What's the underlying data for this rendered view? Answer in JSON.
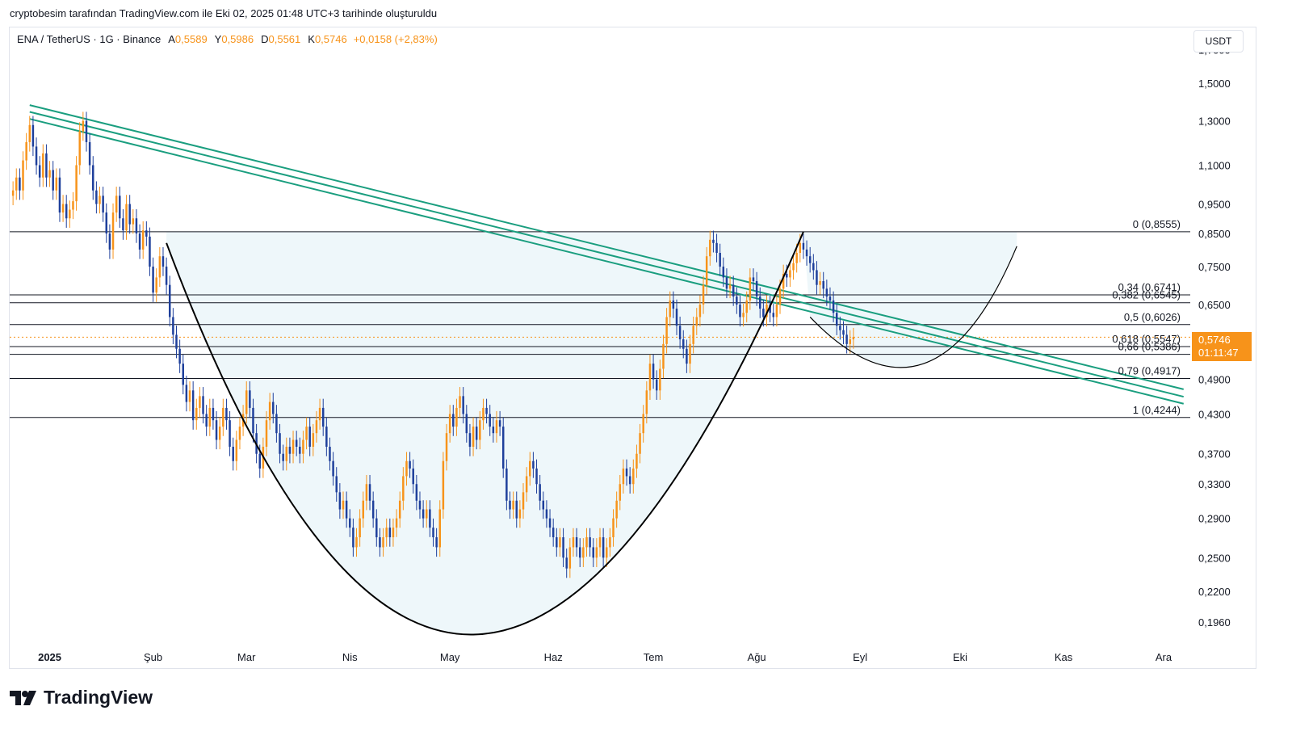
{
  "caption": "cryptobesim tarafından TradingView.com ile Eki 02, 2025 01:48 UTC+3 tarihinde oluşturuldu",
  "legend": {
    "symbol": "ENA / TetherUS · 1G · Binance",
    "open_label": "A",
    "open": "0,5589",
    "high_label": "Y",
    "high": "0,5986",
    "low_label": "D",
    "low": "0,5561",
    "close_label": "K",
    "close": "0,5746",
    "change": "+0,0158 (+2,83%)"
  },
  "currency": "USDT",
  "price_tag": {
    "price": "0,5746",
    "timer": "01:11:47"
  },
  "brand": "TradingView",
  "colors": {
    "up": "#f7931a",
    "down": "#1e3f9b",
    "channel": "#1a9e7f",
    "cup_fill": "#eef7fa",
    "level": "#131722"
  },
  "chart_data": {
    "type": "candlestick",
    "y_scale": "log",
    "ylim": [
      0.18,
      1.85
    ],
    "y_ticks": [
      "1,7000",
      "1,5000",
      "1,3000",
      "1,1000",
      "0,9500",
      "0,8500",
      "0,7500",
      "0,6500",
      "0,4900",
      "0,4300",
      "0,3700",
      "0,3300",
      "0,2900",
      "0,2500",
      "0,2200",
      "0,1960"
    ],
    "y_tick_values": [
      1.7,
      1.5,
      1.3,
      1.1,
      0.95,
      0.85,
      0.75,
      0.65,
      0.49,
      0.43,
      0.37,
      0.33,
      0.29,
      0.25,
      0.22,
      0.196
    ],
    "x_labels": [
      "2025",
      "Şub",
      "Mar",
      "Nis",
      "May",
      "Haz",
      "Tem",
      "Ağu",
      "Eyl",
      "Eki",
      "Kas",
      "Ara"
    ],
    "x_label_days": [
      0,
      31,
      59,
      90,
      120,
      151,
      181,
      212,
      243,
      273,
      304,
      334
    ],
    "x_range_days": [
      -12,
      342
    ],
    "fib_levels": [
      {
        "label": "0 (0,8555)",
        "value": 0.8555
      },
      {
        "label": "0,34 (0,6741)",
        "value": 0.6741
      },
      {
        "label": "0,382 (0,6545)",
        "value": 0.6545
      },
      {
        "label": "0,5 (0,6026)",
        "value": 0.6026
      },
      {
        "label": "0,618 (0,5547)",
        "value": 0.5547
      },
      {
        "label": "0,66 (0,5386)",
        "value": 0.5386
      },
      {
        "label": "0,79 (0,4917)",
        "value": 0.4917
      },
      {
        "label": "1 (0,4244)",
        "value": 0.4244
      }
    ],
    "channel": {
      "start": {
        "day": -6,
        "values": [
          1.38,
          1.345,
          1.31
        ]
      },
      "end": {
        "day": 340,
        "values": [
          0.472,
          0.459,
          0.447
        ]
      }
    },
    "cup": {
      "start": {
        "day": 35,
        "value": 0.82
      },
      "bottom": {
        "day": 127,
        "value": 0.187
      },
      "end": {
        "day": 226,
        "value": 0.8555
      }
    },
    "handle": {
      "start": {
        "day": 228,
        "value": 0.62
      },
      "bottom": {
        "day": 262,
        "value": 0.52
      },
      "end": {
        "day": 290,
        "value": 0.81
      }
    },
    "last_price": 0.5746,
    "closes": [
      [
        -11,
        1.0
      ],
      [
        -10,
        1.05
      ],
      [
        -9,
        1.0
      ],
      [
        -8,
        1.12
      ],
      [
        -7,
        1.2
      ],
      [
        -6,
        1.28
      ],
      [
        -5,
        1.18
      ],
      [
        -4,
        1.1
      ],
      [
        -3,
        1.05
      ],
      [
        -2,
        1.15
      ],
      [
        -1,
        1.05
      ],
      [
        0,
        1.08
      ],
      [
        1,
        1.0
      ],
      [
        2,
        1.05
      ],
      [
        3,
        0.92
      ],
      [
        4,
        0.95
      ],
      [
        5,
        0.9
      ],
      [
        6,
        0.93
      ],
      [
        7,
        0.96
      ],
      [
        8,
        1.1
      ],
      [
        9,
        1.25
      ],
      [
        10,
        1.3
      ],
      [
        11,
        1.2
      ],
      [
        12,
        1.1
      ],
      [
        13,
        1.0
      ],
      [
        14,
        0.95
      ],
      [
        15,
        0.98
      ],
      [
        16,
        0.92
      ],
      [
        17,
        0.85
      ],
      [
        18,
        0.8
      ],
      [
        19,
        0.92
      ],
      [
        20,
        0.98
      ],
      [
        21,
        0.9
      ],
      [
        22,
        0.86
      ],
      [
        23,
        0.95
      ],
      [
        24,
        0.88
      ],
      [
        25,
        0.9
      ],
      [
        26,
        0.85
      ],
      [
        27,
        0.8
      ],
      [
        28,
        0.86
      ],
      [
        29,
        0.84
      ],
      [
        30,
        0.75
      ],
      [
        31,
        0.68
      ],
      [
        32,
        0.72
      ],
      [
        33,
        0.78
      ],
      [
        34,
        0.75
      ],
      [
        35,
        0.7
      ],
      [
        36,
        0.62
      ],
      [
        37,
        0.58
      ],
      [
        38,
        0.55
      ],
      [
        39,
        0.52
      ],
      [
        40,
        0.48
      ],
      [
        41,
        0.45
      ],
      [
        42,
        0.47
      ],
      [
        43,
        0.42
      ],
      [
        44,
        0.44
      ],
      [
        45,
        0.46
      ],
      [
        46,
        0.43
      ],
      [
        47,
        0.41
      ],
      [
        48,
        0.44
      ],
      [
        49,
        0.42
      ],
      [
        50,
        0.39
      ],
      [
        51,
        0.41
      ],
      [
        52,
        0.44
      ],
      [
        53,
        0.42
      ],
      [
        54,
        0.38
      ],
      [
        55,
        0.36
      ],
      [
        56,
        0.39
      ],
      [
        57,
        0.41
      ],
      [
        58,
        0.43
      ],
      [
        59,
        0.47
      ],
      [
        60,
        0.44
      ],
      [
        61,
        0.4
      ],
      [
        62,
        0.37
      ],
      [
        63,
        0.35
      ],
      [
        64,
        0.38
      ],
      [
        65,
        0.42
      ],
      [
        66,
        0.45
      ],
      [
        67,
        0.43
      ],
      [
        68,
        0.4
      ],
      [
        69,
        0.37
      ],
      [
        70,
        0.36
      ],
      [
        71,
        0.38
      ],
      [
        72,
        0.37
      ],
      [
        73,
        0.39
      ],
      [
        74,
        0.38
      ],
      [
        75,
        0.37
      ],
      [
        76,
        0.39
      ],
      [
        77,
        0.41
      ],
      [
        78,
        0.38
      ],
      [
        79,
        0.4
      ],
      [
        80,
        0.42
      ],
      [
        81,
        0.44
      ],
      [
        82,
        0.41
      ],
      [
        83,
        0.38
      ],
      [
        84,
        0.36
      ],
      [
        85,
        0.34
      ],
      [
        86,
        0.32
      ],
      [
        87,
        0.3
      ],
      [
        88,
        0.31
      ],
      [
        89,
        0.29
      ],
      [
        90,
        0.28
      ],
      [
        91,
        0.26
      ],
      [
        92,
        0.27
      ],
      [
        93,
        0.29
      ],
      [
        94,
        0.31
      ],
      [
        95,
        0.33
      ],
      [
        96,
        0.31
      ],
      [
        97,
        0.29
      ],
      [
        98,
        0.27
      ],
      [
        99,
        0.26
      ],
      [
        100,
        0.27
      ],
      [
        101,
        0.28
      ],
      [
        102,
        0.27
      ],
      [
        103,
        0.28
      ],
      [
        104,
        0.29
      ],
      [
        105,
        0.31
      ],
      [
        106,
        0.34
      ],
      [
        107,
        0.36
      ],
      [
        108,
        0.35
      ],
      [
        109,
        0.33
      ],
      [
        110,
        0.31
      ],
      [
        111,
        0.3
      ],
      [
        112,
        0.29
      ],
      [
        113,
        0.3
      ],
      [
        114,
        0.28
      ],
      [
        115,
        0.27
      ],
      [
        116,
        0.26
      ],
      [
        117,
        0.3
      ],
      [
        118,
        0.36
      ],
      [
        119,
        0.4
      ],
      [
        120,
        0.43
      ],
      [
        121,
        0.41
      ],
      [
        122,
        0.44
      ],
      [
        123,
        0.46
      ],
      [
        124,
        0.43
      ],
      [
        125,
        0.4
      ],
      [
        126,
        0.38
      ],
      [
        127,
        0.41
      ],
      [
        128,
        0.39
      ],
      [
        129,
        0.42
      ],
      [
        130,
        0.44
      ],
      [
        131,
        0.43
      ],
      [
        132,
        0.41
      ],
      [
        133,
        0.4
      ],
      [
        134,
        0.42
      ],
      [
        135,
        0.41
      ],
      [
        136,
        0.35
      ],
      [
        137,
        0.31
      ],
      [
        138,
        0.3
      ],
      [
        139,
        0.31
      ],
      [
        140,
        0.29
      ],
      [
        141,
        0.3
      ],
      [
        142,
        0.32
      ],
      [
        143,
        0.34
      ],
      [
        144,
        0.36
      ],
      [
        145,
        0.35
      ],
      [
        146,
        0.33
      ],
      [
        147,
        0.31
      ],
      [
        148,
        0.3
      ],
      [
        149,
        0.29
      ],
      [
        150,
        0.28
      ],
      [
        151,
        0.27
      ],
      [
        152,
        0.26
      ],
      [
        153,
        0.27
      ],
      [
        154,
        0.25
      ],
      [
        155,
        0.24
      ],
      [
        156,
        0.26
      ],
      [
        157,
        0.27
      ],
      [
        158,
        0.26
      ],
      [
        159,
        0.25
      ],
      [
        160,
        0.26
      ],
      [
        161,
        0.27
      ],
      [
        162,
        0.26
      ],
      [
        163,
        0.25
      ],
      [
        164,
        0.26
      ],
      [
        165,
        0.27
      ],
      [
        166,
        0.25
      ],
      [
        167,
        0.26
      ],
      [
        168,
        0.27
      ],
      [
        169,
        0.29
      ],
      [
        170,
        0.31
      ],
      [
        171,
        0.33
      ],
      [
        172,
        0.35
      ],
      [
        173,
        0.34
      ],
      [
        174,
        0.33
      ],
      [
        175,
        0.35
      ],
      [
        176,
        0.37
      ],
      [
        177,
        0.4
      ],
      [
        178,
        0.43
      ],
      [
        179,
        0.47
      ],
      [
        180,
        0.52
      ],
      [
        181,
        0.49
      ],
      [
        182,
        0.47
      ],
      [
        183,
        0.51
      ],
      [
        184,
        0.56
      ],
      [
        185,
        0.62
      ],
      [
        186,
        0.66
      ],
      [
        187,
        0.64
      ],
      [
        188,
        0.6
      ],
      [
        189,
        0.57
      ],
      [
        190,
        0.55
      ],
      [
        191,
        0.52
      ],
      [
        192,
        0.56
      ],
      [
        193,
        0.6
      ],
      [
        194,
        0.62
      ],
      [
        195,
        0.65
      ],
      [
        196,
        0.7
      ],
      [
        197,
        0.78
      ],
      [
        198,
        0.83
      ],
      [
        199,
        0.82
      ],
      [
        200,
        0.79
      ],
      [
        201,
        0.75
      ],
      [
        202,
        0.72
      ],
      [
        203,
        0.69
      ],
      [
        204,
        0.7
      ],
      [
        205,
        0.67
      ],
      [
        206,
        0.65
      ],
      [
        207,
        0.62
      ],
      [
        208,
        0.63
      ],
      [
        209,
        0.66
      ],
      [
        210,
        0.72
      ],
      [
        211,
        0.71
      ],
      [
        212,
        0.67
      ],
      [
        213,
        0.64
      ],
      [
        214,
        0.62
      ],
      [
        215,
        0.65
      ],
      [
        216,
        0.63
      ],
      [
        217,
        0.62
      ],
      [
        218,
        0.65
      ],
      [
        219,
        0.69
      ],
      [
        220,
        0.73
      ],
      [
        221,
        0.72
      ],
      [
        222,
        0.74
      ],
      [
        223,
        0.76
      ],
      [
        224,
        0.79
      ],
      [
        225,
        0.82
      ],
      [
        226,
        0.8
      ],
      [
        227,
        0.78
      ],
      [
        228,
        0.76
      ],
      [
        229,
        0.74
      ],
      [
        230,
        0.7
      ],
      [
        231,
        0.71
      ],
      [
        232,
        0.69
      ],
      [
        233,
        0.67
      ],
      [
        234,
        0.66
      ],
      [
        235,
        0.63
      ],
      [
        236,
        0.6
      ],
      [
        237,
        0.59
      ],
      [
        238,
        0.58
      ],
      [
        239,
        0.56
      ],
      [
        240,
        0.57
      ],
      [
        241,
        0.575
      ]
    ]
  }
}
